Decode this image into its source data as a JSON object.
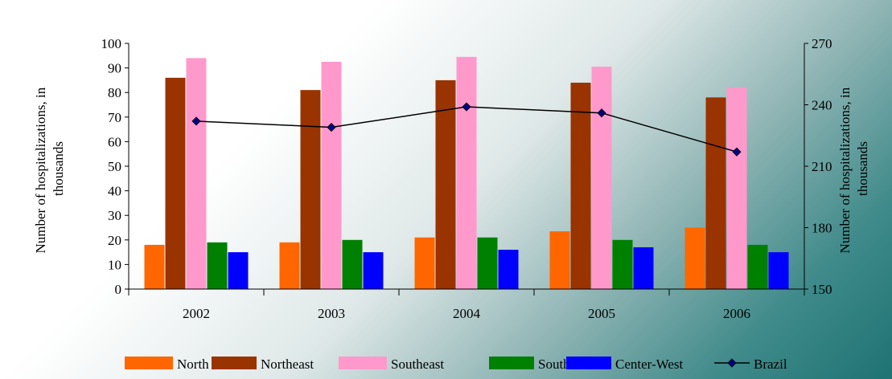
{
  "chart_data": {
    "type": "bar",
    "categories": [
      "2002",
      "2003",
      "2004",
      "2005",
      "2006"
    ],
    "ylabel": "Number of hospitalizations, in thousands",
    "ylabel2": "Number of hospitalizations, in thousands",
    "ylim": [
      0,
      100
    ],
    "yticks": [
      0,
      10,
      20,
      30,
      40,
      50,
      60,
      70,
      80,
      90,
      100
    ],
    "ylim2": [
      150,
      270
    ],
    "yticks2": [
      150,
      180,
      210,
      240,
      270
    ],
    "legend_position": "bottom",
    "series": [
      {
        "name": "North",
        "axis": "left",
        "kind": "bar",
        "color": "#ff6600",
        "values": [
          18,
          19,
          21,
          23.5,
          25
        ]
      },
      {
        "name": "Northeast",
        "axis": "left",
        "kind": "bar",
        "color": "#993300",
        "values": [
          86,
          81,
          85,
          84,
          78
        ]
      },
      {
        "name": "Southeast",
        "axis": "left",
        "kind": "bar",
        "color": "#ff99cc",
        "values": [
          94,
          92.5,
          94.5,
          90.5,
          82
        ]
      },
      {
        "name": "South",
        "axis": "left",
        "kind": "bar",
        "color": "#008000",
        "values": [
          19,
          20,
          21,
          20,
          18
        ]
      },
      {
        "name": "Center-West",
        "axis": "left",
        "kind": "bar",
        "color": "#0000ff",
        "values": [
          15,
          15,
          16,
          17,
          15
        ]
      },
      {
        "name": "Brazil",
        "axis": "right",
        "kind": "line",
        "color": "#000080",
        "values": [
          232,
          229,
          239,
          236,
          217
        ]
      }
    ]
  }
}
